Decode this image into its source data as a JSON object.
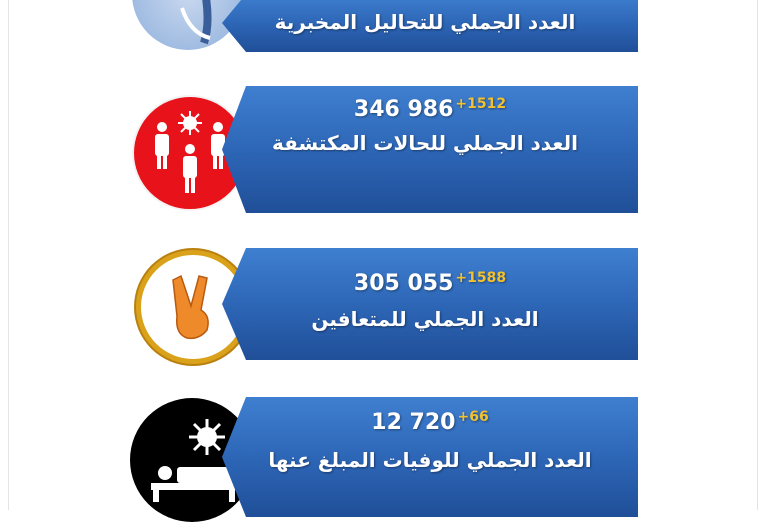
{
  "stats": [
    {
      "label": "العدد الجملي للتحاليل المخبرية",
      "icon": "lab-test-icon"
    },
    {
      "value": "346 986",
      "delta": "+1512",
      "label": "العدد  الجملي للحالات المكتشفة",
      "icon": "infected-people-icon",
      "icon_color": "#e8121a"
    },
    {
      "value": "305 055",
      "delta": "+1588",
      "label": "العدد الجملي للمتعافين",
      "icon": "victory-hand-icon",
      "icon_color": "#d9a21a"
    },
    {
      "value": "12 720",
      "delta": "+66",
      "label": "العدد الجملي للوفيات المبلغ عنها",
      "icon": "patient-bed-icon",
      "icon_color": "#000000"
    }
  ],
  "colors": {
    "panel": "#2c64b4",
    "delta": "#f2c12e"
  }
}
